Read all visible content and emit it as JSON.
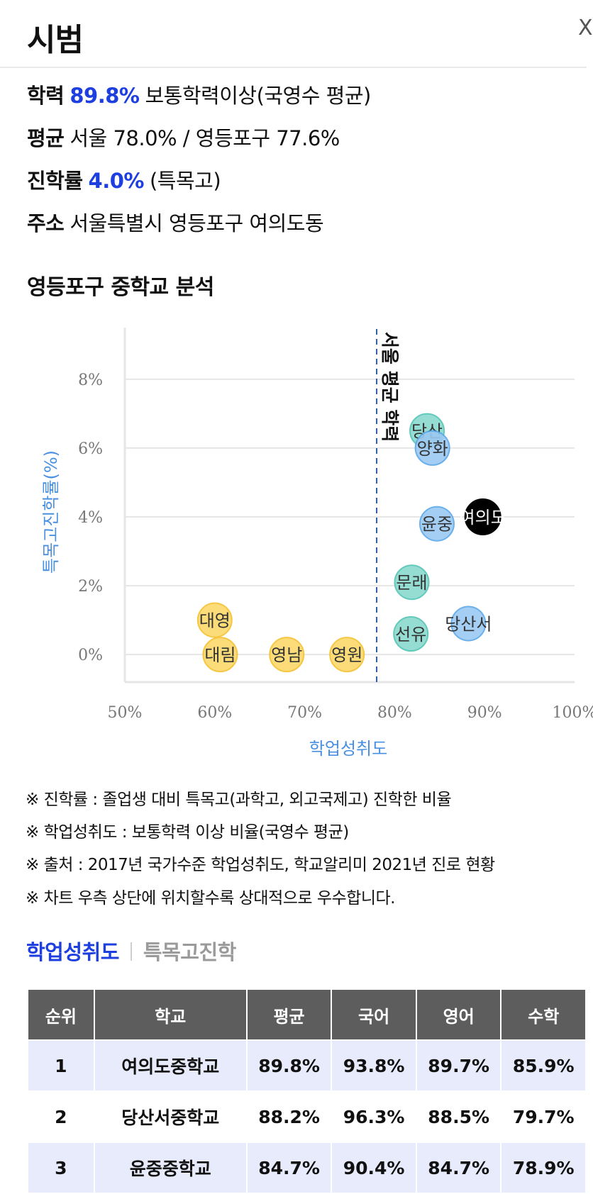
{
  "header": {
    "title": "시범",
    "close_label": "X"
  },
  "info": {
    "line1": {
      "key": "학력",
      "value": "89.8%",
      "rest": "보통학력이상(국영수 평균)"
    },
    "line2": {
      "key": "평균",
      "rest": "서울 78.0% / 영등포구 77.6%"
    },
    "line3": {
      "key": "진학률",
      "value": "4.0%",
      "rest": "(특목고)"
    },
    "line4": {
      "key": "주소",
      "rest": "서울특별시 영등포구 여의도동"
    }
  },
  "section_title": "영등포구 중학교 분석",
  "chart_data": {
    "type": "scatter",
    "xlabel": "학업성취도",
    "ylabel": "특목고진학률(%)",
    "xlim": [
      50,
      100
    ],
    "ylim": [
      -0.8,
      9.5
    ],
    "xticks": [
      "50%",
      "60%",
      "70%",
      "80%",
      "90%",
      "100%"
    ],
    "yticks": [
      "0%",
      "2%",
      "4%",
      "6%",
      "8%"
    ],
    "reference_line": {
      "x": 78.0,
      "label": "서울 평균 학력"
    },
    "colors": {
      "yellow": "#fbd96b",
      "teal": "#8ad9cf",
      "blue": "#9cc9f3",
      "black": "#000000"
    },
    "points": [
      {
        "name": "대영",
        "x": 60.0,
        "y": 1.0,
        "color": "yellow"
      },
      {
        "name": "대림",
        "x": 60.6,
        "y": 0.0,
        "color": "yellow"
      },
      {
        "name": "영남",
        "x": 68.0,
        "y": 0.0,
        "color": "yellow"
      },
      {
        "name": "영원",
        "x": 74.7,
        "y": 0.0,
        "color": "yellow"
      },
      {
        "name": "선유",
        "x": 81.8,
        "y": 0.6,
        "color": "teal"
      },
      {
        "name": "문래",
        "x": 81.9,
        "y": 2.1,
        "color": "teal"
      },
      {
        "name": "당산",
        "x": 83.6,
        "y": 6.5,
        "color": "teal"
      },
      {
        "name": "양화",
        "x": 84.2,
        "y": 6.0,
        "color": "blue"
      },
      {
        "name": "윤중",
        "x": 84.7,
        "y": 3.8,
        "color": "blue"
      },
      {
        "name": "당산서",
        "x": 88.2,
        "y": 0.9,
        "color": "blue"
      },
      {
        "name": "여의도",
        "x": 89.8,
        "y": 4.0,
        "color": "black"
      }
    ]
  },
  "notes": [
    "※ 진학률 : 졸업생 대비 특목고(과학고, 외고국제고) 진학한 비율",
    "※ 학업성취도 : 보통학력 이상 비율(국영수 평균)",
    "※ 출처 : 2017년 국가수준 학업성취도, 학교알리미 2021년 진로 현황",
    "※ 차트 우측 상단에 위치할수록 상대적으로 우수합니다."
  ],
  "tabs": {
    "active": "학업성취도",
    "inactive": "특목고진학"
  },
  "table": {
    "headers": [
      "순위",
      "학교",
      "평균",
      "국어",
      "영어",
      "수학"
    ],
    "rows": [
      [
        "1",
        "여의도중학교",
        "89.8%",
        "93.8%",
        "89.7%",
        "85.9%"
      ],
      [
        "2",
        "당산서중학교",
        "88.2%",
        "96.3%",
        "88.5%",
        "79.7%"
      ],
      [
        "3",
        "윤중중학교",
        "84.7%",
        "90.4%",
        "84.7%",
        "78.9%"
      ]
    ]
  }
}
